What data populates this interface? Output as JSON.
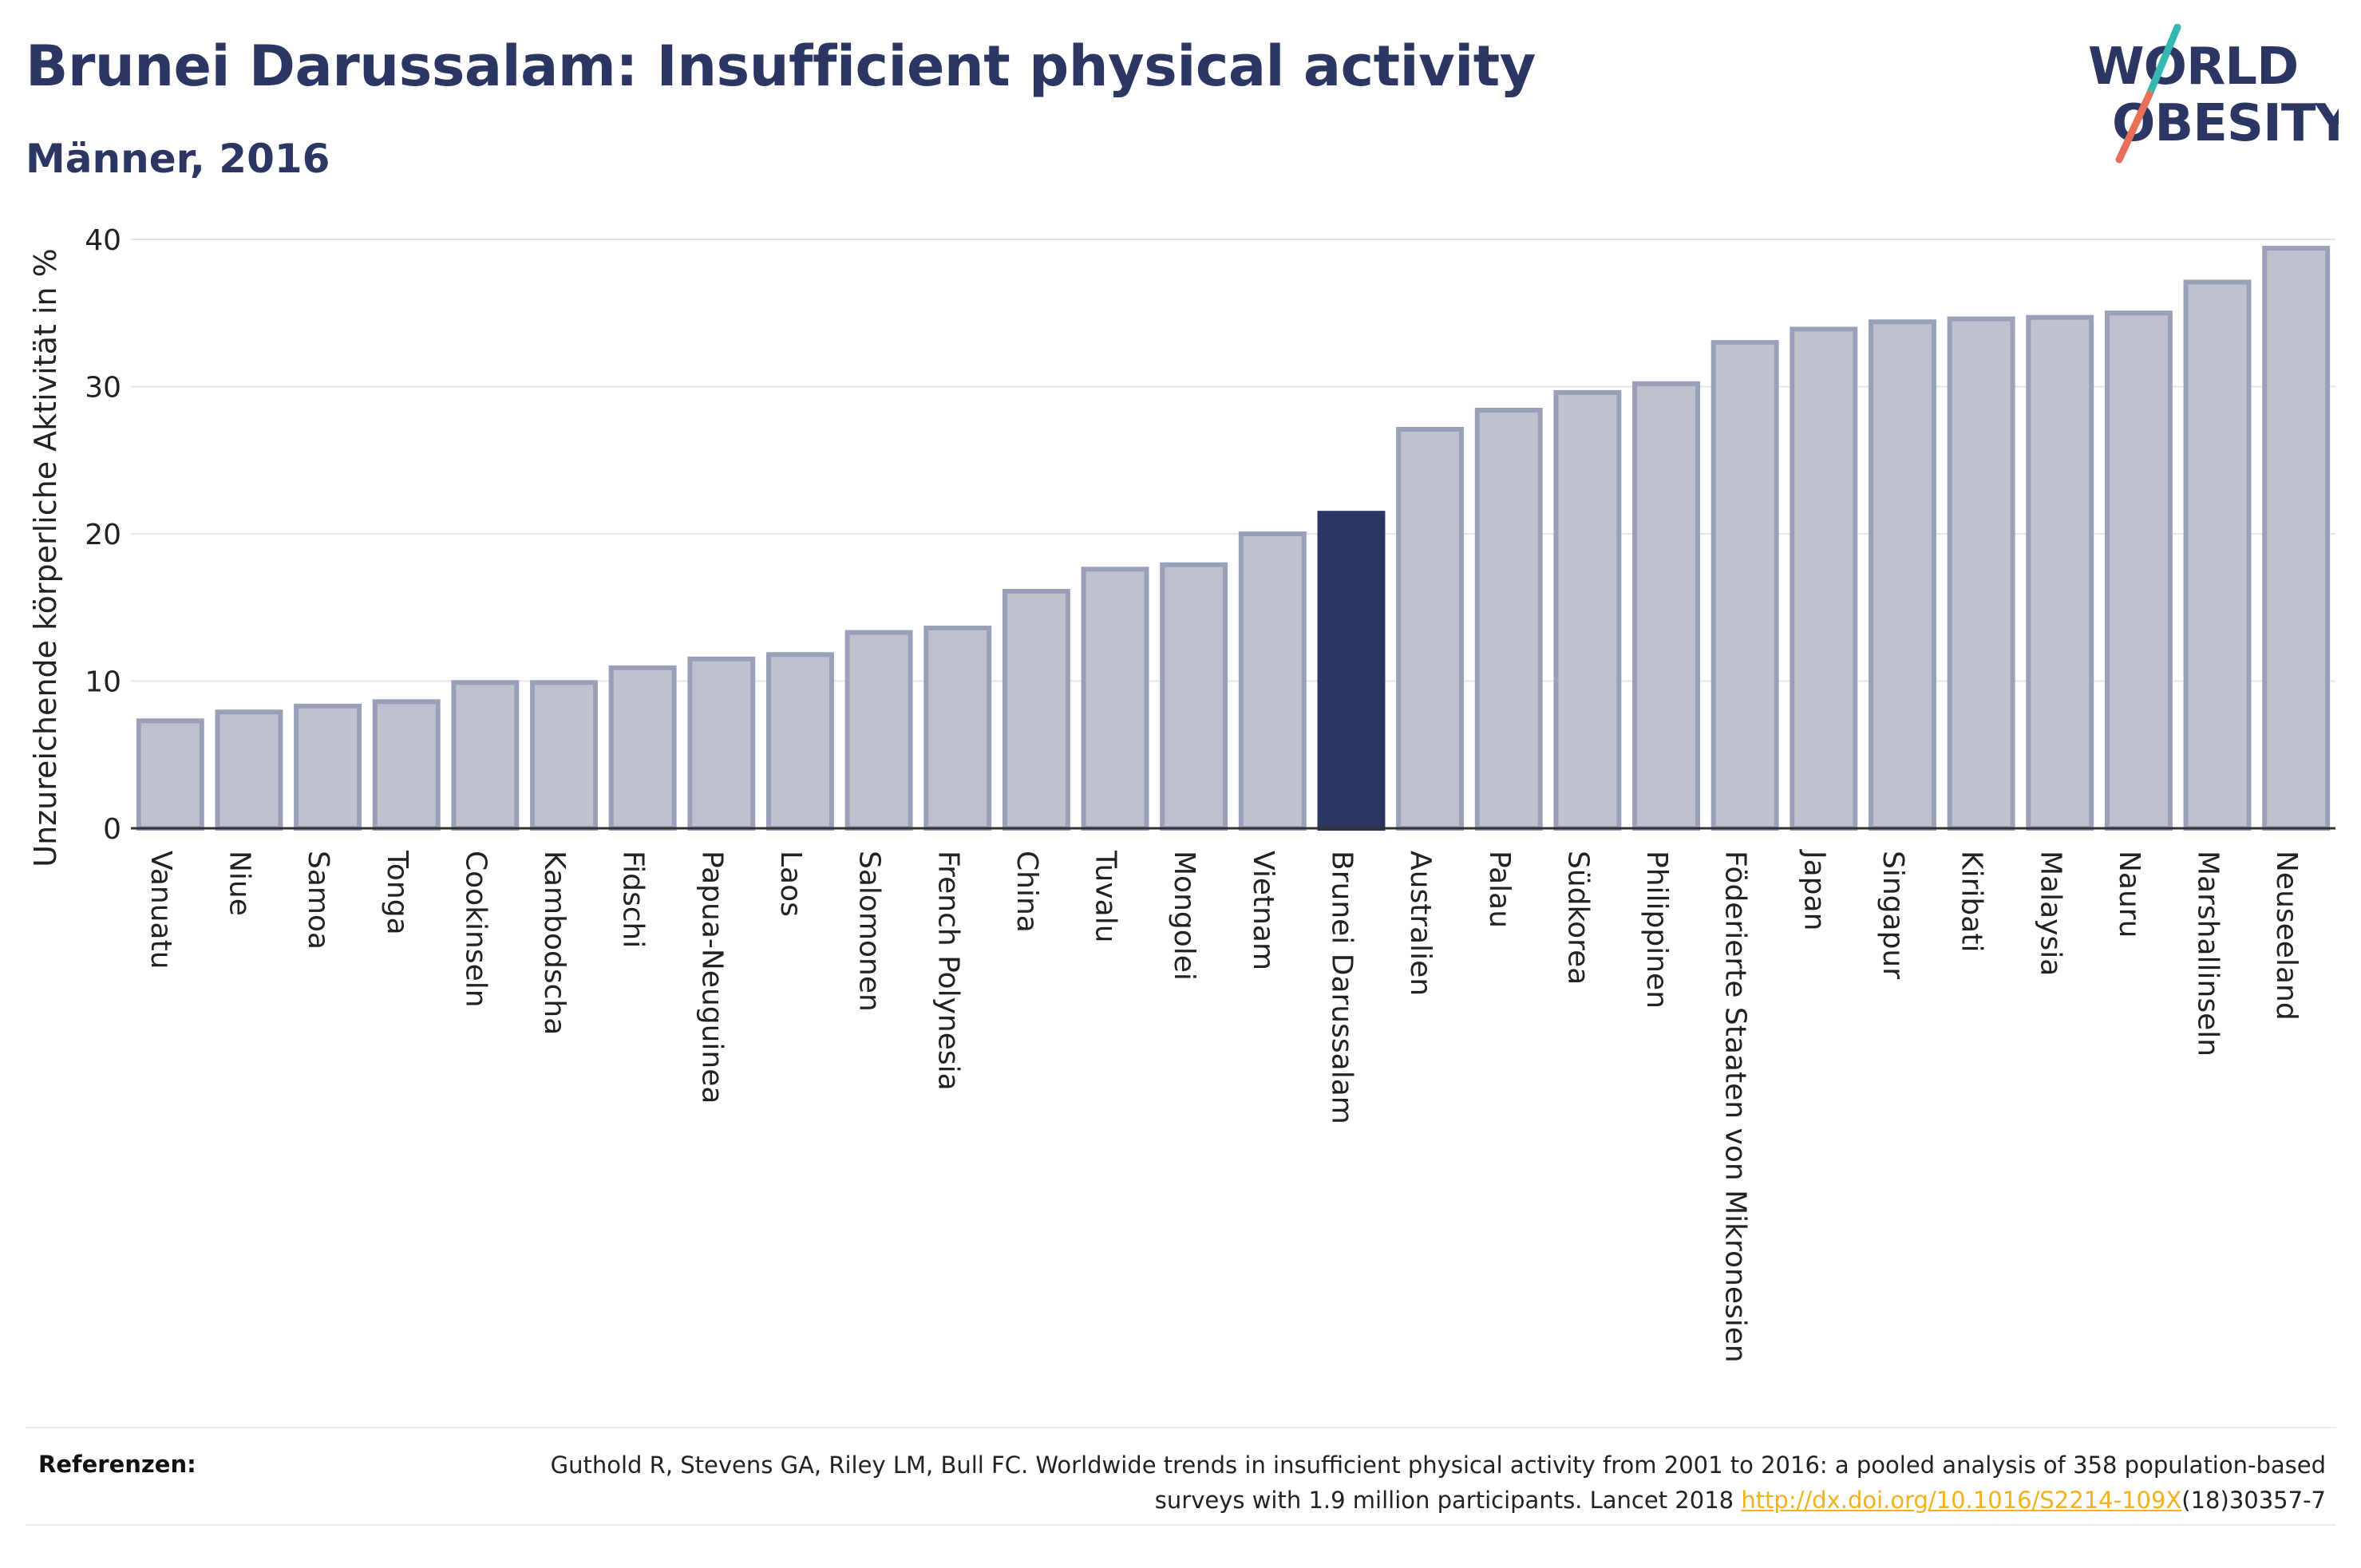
{
  "header": {
    "title": "Brunei Darussalam: Insufficient physical activity",
    "subtitle": "Männer, 2016"
  },
  "logo": {
    "line1": "WORLD",
    "line2": "OBESITY",
    "slash_colors": [
      "#36b8b2",
      "#e8705a"
    ]
  },
  "colors": {
    "bar": "#bfc2ce",
    "bar_border": "#9aa0b8",
    "highlight": "#2b3663",
    "text": "#2b3663"
  },
  "chart_data": {
    "type": "bar",
    "title": "Brunei Darussalam: Insufficient physical activity",
    "subtitle": "Männer, 2016",
    "ylabel": "Unzureichende körperliche Aktivität in %",
    "xlabel": "",
    "ylim": [
      0,
      40
    ],
    "yticks": [
      0,
      10,
      20,
      30,
      40
    ],
    "grid": true,
    "highlight": "Brunei Darussalam",
    "categories": [
      "Vanuatu",
      "Niue",
      "Samoa",
      "Tonga",
      "Cookinseln",
      "Kambodscha",
      "Fidschi",
      "Papua-Neuguinea",
      "Laos",
      "Salomonen",
      "French Polynesia",
      "China",
      "Tuvalu",
      "Mongolei",
      "Vietnam",
      "Brunei Darussalam",
      "Australien",
      "Palau",
      "Südkorea",
      "Philippinen",
      "Föderierte Staaten von Mikronesien",
      "Japan",
      "Singapur",
      "Kiribati",
      "Malaysia",
      "Nauru",
      "Marshallinseln",
      "Neuseeland"
    ],
    "values": [
      7.3,
      7.9,
      8.3,
      8.6,
      9.9,
      9.9,
      10.9,
      11.5,
      11.8,
      13.3,
      13.6,
      16.1,
      17.6,
      17.9,
      20.0,
      21.4,
      27.1,
      28.4,
      29.6,
      30.2,
      33.0,
      33.9,
      34.4,
      34.6,
      34.7,
      35.0,
      37.1,
      39.4
    ]
  },
  "references": {
    "label": "Referenzen:",
    "text_before": "Guthold R, Stevens GA, Riley LM, Bull FC. Worldwide trends in insufficient physical activity from 2001 to 2016: a pooled analysis of 358 population-based surveys with 1.9 million participants. Lancet 2018 ",
    "link": "http://dx.doi.org/10.1016/S2214-109X",
    "text_after": "(18)30357-7"
  }
}
